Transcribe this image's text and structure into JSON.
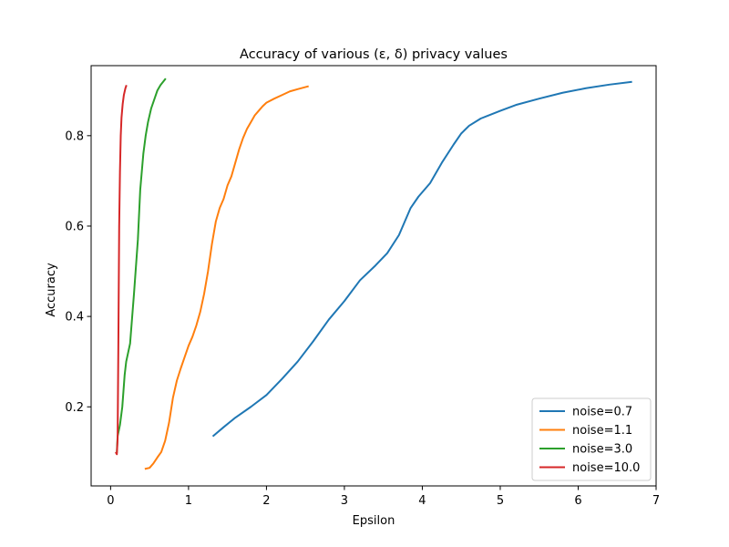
{
  "chart_data": {
    "type": "line",
    "title": "Accuracy of various (ε, δ) privacy values",
    "xlabel": "Epsilon",
    "ylabel": "Accuracy",
    "xlim": [
      -0.25,
      7.0
    ],
    "ylim": [
      0.025,
      0.955
    ],
    "xticks": [
      0,
      1,
      2,
      3,
      4,
      5,
      6,
      7
    ],
    "yticks": [
      0.2,
      0.4,
      0.6,
      0.8
    ],
    "grid": false,
    "legend_position": "lower right",
    "series": [
      {
        "name": "noise=0.7",
        "color": "#1f77b4",
        "points": [
          [
            1.32,
            0.136
          ],
          [
            1.45,
            0.155
          ],
          [
            1.6,
            0.176
          ],
          [
            1.8,
            0.2
          ],
          [
            2.0,
            0.226
          ],
          [
            2.2,
            0.262
          ],
          [
            2.4,
            0.3
          ],
          [
            2.6,
            0.345
          ],
          [
            2.8,
            0.393
          ],
          [
            3.0,
            0.434
          ],
          [
            3.2,
            0.48
          ],
          [
            3.4,
            0.513
          ],
          [
            3.55,
            0.54
          ],
          [
            3.7,
            0.58
          ],
          [
            3.85,
            0.64
          ],
          [
            3.95,
            0.665
          ],
          [
            4.1,
            0.695
          ],
          [
            4.25,
            0.74
          ],
          [
            4.4,
            0.78
          ],
          [
            4.5,
            0.805
          ],
          [
            4.6,
            0.822
          ],
          [
            4.75,
            0.838
          ],
          [
            5.0,
            0.855
          ],
          [
            5.2,
            0.868
          ],
          [
            5.5,
            0.882
          ],
          [
            5.8,
            0.895
          ],
          [
            6.1,
            0.905
          ],
          [
            6.4,
            0.913
          ],
          [
            6.68,
            0.919
          ]
        ]
      },
      {
        "name": "noise=1.1",
        "color": "#ff7f0e",
        "points": [
          [
            0.45,
            0.063
          ],
          [
            0.5,
            0.065
          ],
          [
            0.55,
            0.075
          ],
          [
            0.6,
            0.088
          ],
          [
            0.65,
            0.1
          ],
          [
            0.7,
            0.125
          ],
          [
            0.75,
            0.165
          ],
          [
            0.8,
            0.22
          ],
          [
            0.85,
            0.258
          ],
          [
            0.9,
            0.285
          ],
          [
            0.95,
            0.31
          ],
          [
            1.0,
            0.335
          ],
          [
            1.05,
            0.355
          ],
          [
            1.1,
            0.38
          ],
          [
            1.15,
            0.41
          ],
          [
            1.2,
            0.45
          ],
          [
            1.25,
            0.5
          ],
          [
            1.3,
            0.56
          ],
          [
            1.35,
            0.61
          ],
          [
            1.4,
            0.64
          ],
          [
            1.45,
            0.66
          ],
          [
            1.5,
            0.69
          ],
          [
            1.55,
            0.71
          ],
          [
            1.6,
            0.74
          ],
          [
            1.65,
            0.77
          ],
          [
            1.7,
            0.795
          ],
          [
            1.75,
            0.815
          ],
          [
            1.8,
            0.83
          ],
          [
            1.85,
            0.845
          ],
          [
            1.9,
            0.855
          ],
          [
            1.95,
            0.865
          ],
          [
            2.0,
            0.873
          ],
          [
            2.1,
            0.882
          ],
          [
            2.2,
            0.89
          ],
          [
            2.3,
            0.898
          ],
          [
            2.4,
            0.903
          ],
          [
            2.53,
            0.909
          ]
        ]
      },
      {
        "name": "noise=3.0",
        "color": "#2ca02c",
        "points": [
          [
            0.08,
            0.1
          ],
          [
            0.09,
            0.135
          ],
          [
            0.12,
            0.16
          ],
          [
            0.15,
            0.2
          ],
          [
            0.18,
            0.27
          ],
          [
            0.2,
            0.3
          ],
          [
            0.25,
            0.34
          ],
          [
            0.3,
            0.45
          ],
          [
            0.35,
            0.57
          ],
          [
            0.38,
            0.68
          ],
          [
            0.42,
            0.76
          ],
          [
            0.45,
            0.8
          ],
          [
            0.48,
            0.83
          ],
          [
            0.52,
            0.86
          ],
          [
            0.56,
            0.88
          ],
          [
            0.6,
            0.9
          ],
          [
            0.64,
            0.912
          ],
          [
            0.7,
            0.925
          ]
        ]
      },
      {
        "name": "noise=10.0",
        "color": "#d62728",
        "points": [
          [
            0.07,
            0.098
          ],
          [
            0.08,
            0.095
          ],
          [
            0.09,
            0.13
          ],
          [
            0.1,
            0.35
          ],
          [
            0.11,
            0.6
          ],
          [
            0.12,
            0.72
          ],
          [
            0.13,
            0.8
          ],
          [
            0.14,
            0.84
          ],
          [
            0.155,
            0.87
          ],
          [
            0.17,
            0.89
          ],
          [
            0.19,
            0.905
          ],
          [
            0.2,
            0.91
          ]
        ]
      }
    ]
  }
}
